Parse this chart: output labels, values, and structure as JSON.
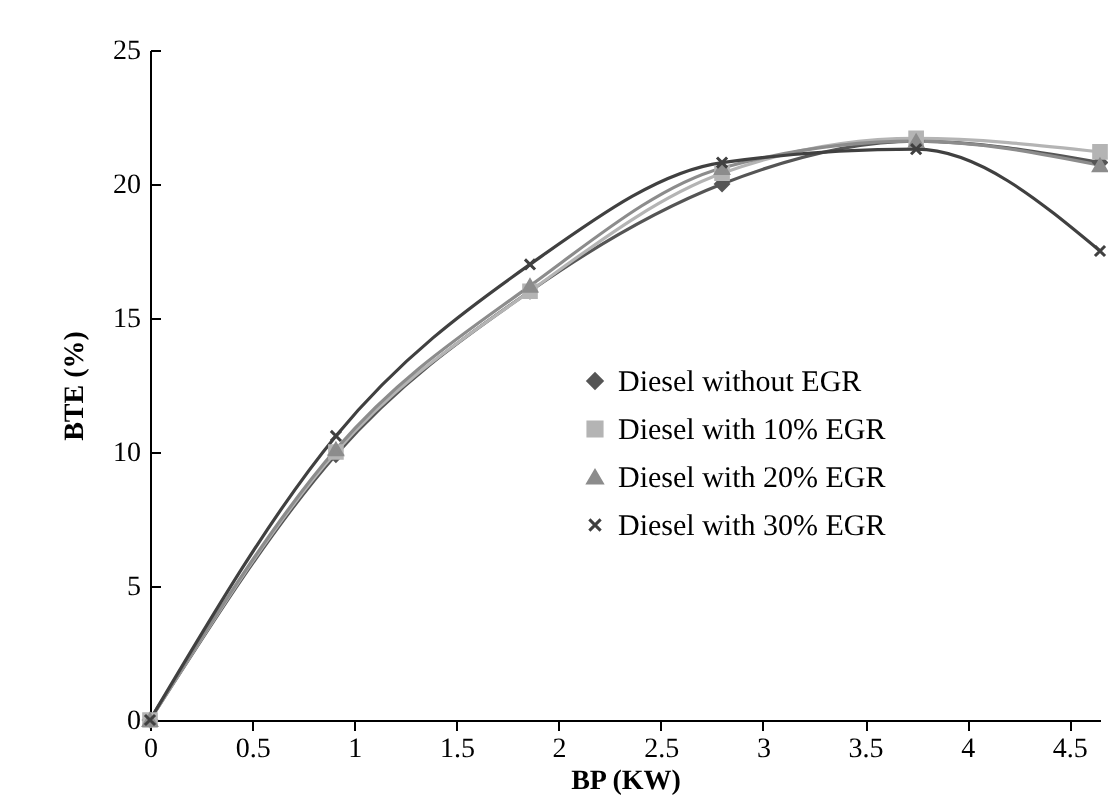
{
  "chart_data": {
    "type": "line",
    "xlabel": "BP (KW)",
    "ylabel": "BTE (%)",
    "x": [
      0,
      0.91,
      1.86,
      2.8,
      3.75,
      4.65
    ],
    "series": [
      {
        "name": "Diesel without EGR",
        "color": "#555555",
        "marker": "diamond",
        "values": [
          0,
          9.9,
          16,
          20,
          21.6,
          20.8
        ]
      },
      {
        "name": "Diesel with 10% EGR",
        "color": "#b4b4b4",
        "marker": "square",
        "values": [
          0,
          10,
          16,
          20.4,
          21.7,
          21.2
        ]
      },
      {
        "name": "Diesel with 20% EGR",
        "color": "#8c8c8c",
        "marker": "triangle",
        "values": [
          0,
          10.1,
          16.2,
          20.6,
          21.6,
          20.7
        ]
      },
      {
        "name": "Diesel with 30% EGR",
        "color": "#404040",
        "marker": "cross",
        "values": [
          0,
          10.6,
          17,
          20.8,
          21.3,
          17.5
        ]
      }
    ],
    "xlim": [
      0,
      4.65
    ],
    "xticks": [
      0,
      0.5,
      1,
      1.5,
      2,
      2.5,
      3,
      3.5,
      4,
      4.5
    ],
    "ylim": [
      0,
      25
    ],
    "yticks": [
      0,
      5,
      10,
      15,
      20,
      25
    ],
    "grid": false,
    "legend": "right",
    "line_style": "solid"
  }
}
